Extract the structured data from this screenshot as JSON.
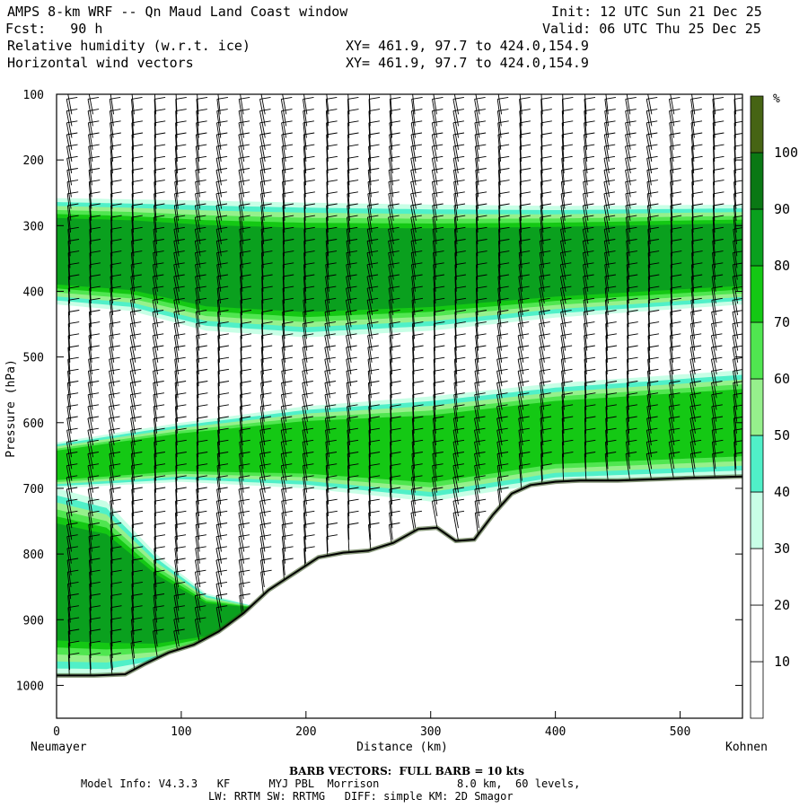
{
  "header": {
    "title": "AMPS 8-km WRF -- Qn Maud Land Coast window",
    "init": "Init: 12 UTC Sun 21 Dec 25",
    "fcst": "Fcst:   90 h",
    "valid": "Valid: 06 UTC Thu 25 Dec 25",
    "field1": "Relative humidity (w.r.t. ice)",
    "xy1": "XY= 461.9, 97.7 to 424.0,154.9",
    "field2": "Horizontal wind vectors",
    "xy2": "XY= 461.9, 97.7 to 424.0,154.9"
  },
  "footer": {
    "barb_note": "BARB VECTORS:  FULL BARB = 10 kts",
    "line1": "Model Info: V4.3.3   KF      MYJ PBL  Morrison            8.0 km,  60 levels,",
    "line2": "LW: RRTM SW: RRTMG   DIFF: simple KM: 2D Smagor"
  },
  "chart_data": {
    "type": "heatmap",
    "title": "Relative humidity (w.r.t. ice)",
    "xlabel": "Distance (km)",
    "ylabel": "Pressure (hPa)",
    "x_left_label": "Neumayer",
    "x_right_label": "Kohnen",
    "xlim": [
      0,
      550
    ],
    "ylim": [
      1050,
      100
    ],
    "x_ticks": [
      0,
      100,
      200,
      300,
      400,
      500
    ],
    "y_ticks": [
      100,
      200,
      300,
      400,
      500,
      600,
      700,
      800,
      900,
      1000
    ],
    "colorbar": {
      "unit": "%",
      "levels": [
        10,
        20,
        30,
        40,
        50,
        60,
        70,
        80,
        90,
        100
      ],
      "colors": [
        "#ffffff",
        "#ffffff",
        "#ffffff",
        "#c8ffe6",
        "#50f0c8",
        "#96f08c",
        "#50e650",
        "#14c814",
        "#0aa01e",
        "#0a7814",
        "#466414"
      ]
    },
    "terrain": {
      "x": [
        0,
        30,
        55,
        70,
        90,
        110,
        130,
        150,
        170,
        190,
        210,
        230,
        250,
        270,
        290,
        305,
        320,
        335,
        350,
        365,
        380,
        400,
        420,
        450,
        480,
        510,
        550
      ],
      "p": [
        985,
        985,
        983,
        968,
        950,
        938,
        918,
        890,
        855,
        830,
        805,
        798,
        795,
        783,
        762,
        760,
        780,
        778,
        740,
        708,
        695,
        690,
        688,
        688,
        686,
        684,
        682
      ]
    },
    "rh_layers": [
      {
        "name": "upper-moist",
        "x": [
          0,
          60,
          120,
          200,
          300,
          400,
          550
        ],
        "p_top": [
          258,
          260,
          262,
          265,
          268,
          270,
          268
        ],
        "p_bottom": [
          420,
          430,
          460,
          470,
          460,
          440,
          420
        ],
        "peak_rh": 85
      },
      {
        "name": "mid-moist",
        "x": [
          0,
          100,
          200,
          300,
          400,
          550
        ],
        "p_top": [
          630,
          600,
          575,
          560,
          540,
          520
        ],
        "p_bottom": [
          700,
          690,
          700,
          720,
          690,
          680
        ],
        "peak_rh": 75
      },
      {
        "name": "surface-moist",
        "x": [
          0,
          40,
          80,
          120,
          160
        ],
        "p_top": [
          700,
          720,
          800,
          860,
          880
        ],
        "p_bottom": [
          985,
          985,
          968,
          940,
          890
        ],
        "peak_rh": 90
      }
    ],
    "wind_barb_columns_km": [
      10,
      27,
      44,
      61,
      79,
      96,
      113,
      130,
      148,
      165,
      182,
      199,
      217,
      234,
      251,
      268,
      286,
      303,
      320,
      337,
      355,
      372,
      389,
      406,
      424,
      441,
      458,
      475,
      493,
      510,
      527,
      544
    ]
  }
}
